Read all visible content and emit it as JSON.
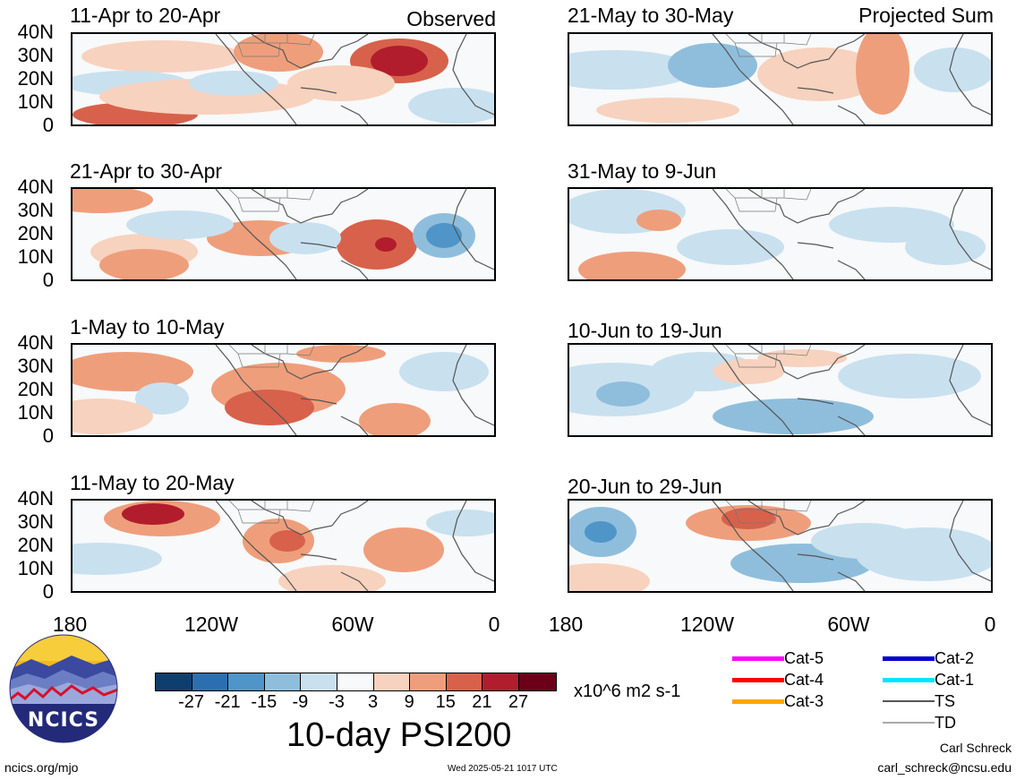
{
  "panels": {
    "left": [
      {
        "title": "11-Apr to 20-Apr",
        "corner": "Observed"
      },
      {
        "title": "21-Apr to 30-Apr",
        "corner": ""
      },
      {
        "title": "1-May to 10-May",
        "corner": ""
      },
      {
        "title": "11-May to 20-May",
        "corner": ""
      }
    ],
    "right": [
      {
        "title": "21-May to 30-May",
        "corner": "Projected Sum"
      },
      {
        "title": "31-May to 9-Jun",
        "corner": ""
      },
      {
        "title": "10-Jun to 19-Jun",
        "corner": ""
      },
      {
        "title": "20-Jun to 29-Jun",
        "corner": ""
      }
    ]
  },
  "axes": {
    "y_ticks": [
      "40N",
      "30N",
      "20N",
      "10N",
      "0"
    ],
    "x_ticks": [
      "180",
      "120W",
      "60W",
      "0"
    ]
  },
  "colorbar": {
    "labels": [
      "-27",
      "-21",
      "-15",
      "-9",
      "-3",
      "3",
      "9",
      "15",
      "21",
      "27"
    ],
    "colors": [
      "#0d3e6e",
      "#2c6fb0",
      "#4f95c8",
      "#8fbedc",
      "#c9e0ef",
      "#f7f9fa",
      "#f7d2be",
      "#ef9e7b",
      "#d8614b",
      "#b11d2c",
      "#6d0019"
    ],
    "units": "x10^6 m2 s-1",
    "title": "10-day PSI200"
  },
  "legend": {
    "items": [
      {
        "label": "Cat-5",
        "color": "#ff00ff"
      },
      {
        "label": "Cat-4",
        "color": "#ff0000"
      },
      {
        "label": "Cat-3",
        "color": "#ffa500"
      },
      {
        "label": "Cat-2",
        "color": "#0000cc"
      },
      {
        "label": "Cat-1",
        "color": "#00e5ff"
      },
      {
        "label": "TS",
        "color": "#555555"
      },
      {
        "label": "TD",
        "color": "#aaaaaa"
      }
    ]
  },
  "logo": {
    "text": "NCICS"
  },
  "footer": {
    "url": "ncics.org/mjo",
    "timestamp": "Wed 2025-05-21 1017 UTC",
    "author": "Carl Schreck",
    "email": "carl_schreck@ncsu.edu"
  }
}
